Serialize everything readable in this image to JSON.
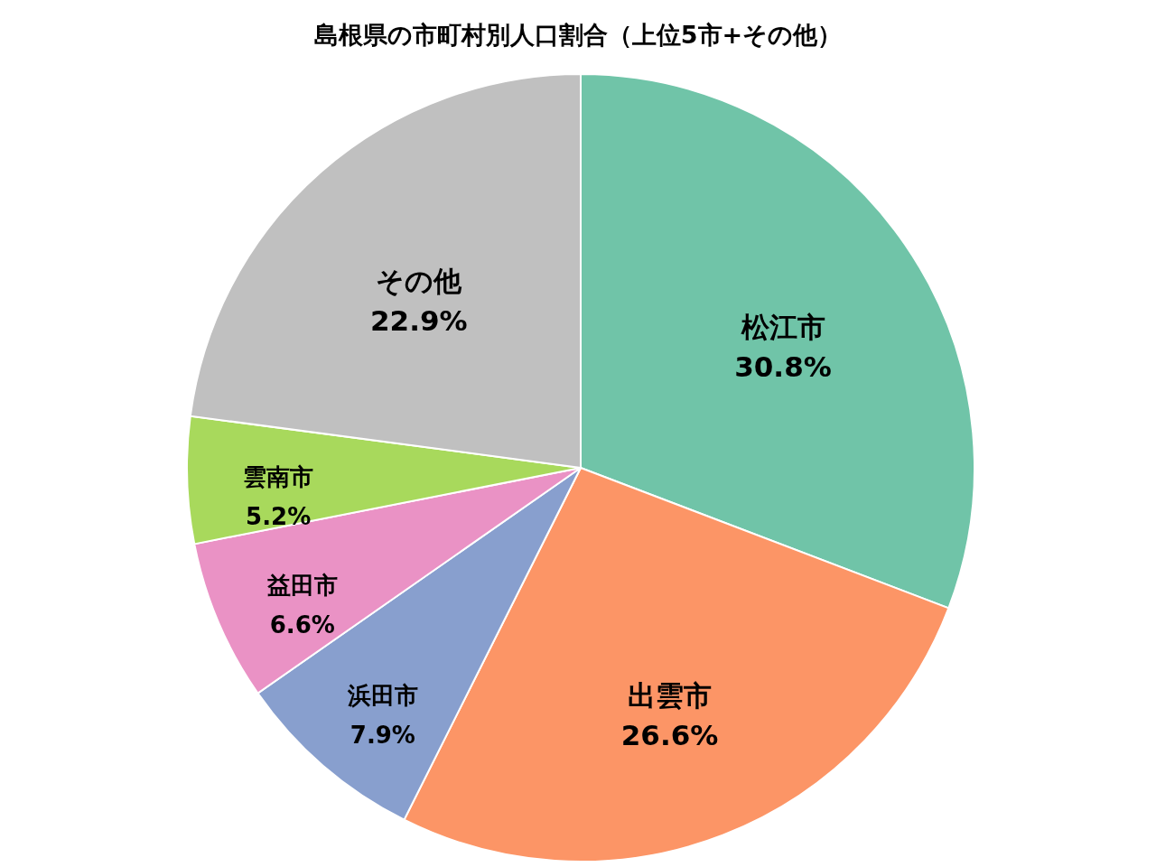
{
  "chart_data": {
    "type": "pie",
    "title": "島根県の市町村別人口割合（上位5市+その他）",
    "categories": [
      "松江市",
      "出雲市",
      "浜田市",
      "益田市",
      "雲南市",
      "その他"
    ],
    "values": [
      30.8,
      26.6,
      7.9,
      6.6,
      5.2,
      22.9
    ],
    "value_labels": [
      "30.8%",
      "26.6%",
      "7.9%",
      "6.6%",
      "5.2%",
      "22.9%"
    ],
    "colors": [
      "#70c4a8",
      "#fc9566",
      "#889fce",
      "#ea92c5",
      "#a8d95c",
      "#c0c0c0"
    ]
  }
}
